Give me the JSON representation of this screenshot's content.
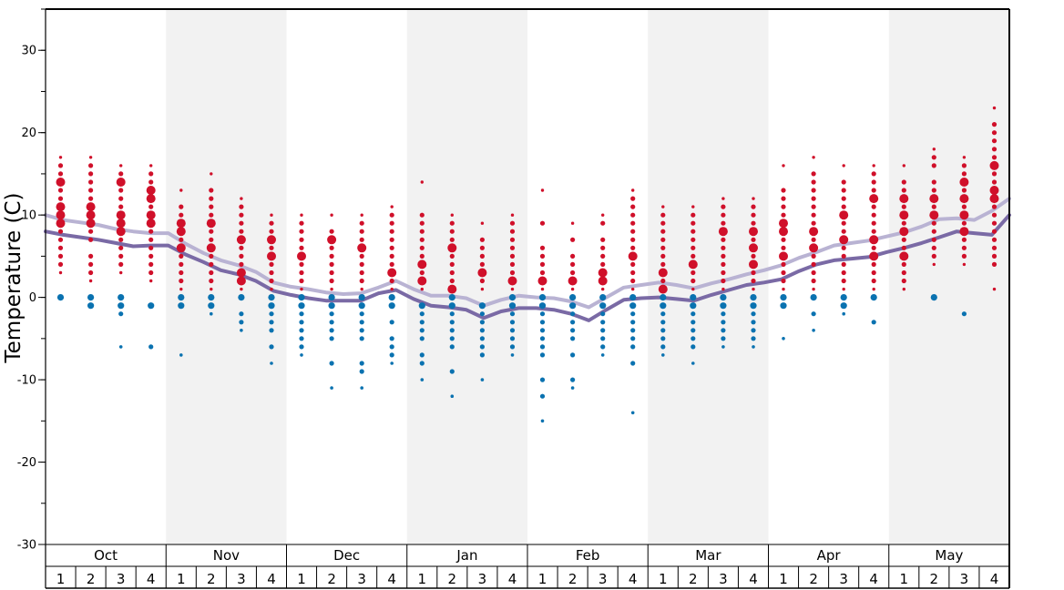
{
  "chart_data": {
    "type": "scatter",
    "ylabel": "Temperature (C)",
    "ylim": [
      -30,
      35
    ],
    "yticks": [
      30,
      20,
      10,
      0,
      -10,
      -20,
      -30
    ],
    "months": [
      "Oct",
      "Nov",
      "Dec",
      "Jan",
      "Feb",
      "Mar",
      "Apr",
      "May"
    ],
    "weeks": [
      "1",
      "2",
      "3",
      "4"
    ],
    "colors": {
      "warm": "#d0102a",
      "cold": "#0a72b0",
      "dark_line": "#7a6aa5",
      "light_line": "#b9b3d3",
      "band": "#f2f2f2",
      "frame": "#000000"
    },
    "series": [
      {
        "values": [
          8.0,
          7.6,
          7.3,
          7.0,
          6.6,
          6.2,
          6.3,
          6.3,
          5.2,
          4.3,
          3.3,
          2.8,
          2.0,
          0.8,
          0.3,
          -0.1,
          -0.4,
          -0.4,
          -0.4,
          0.5,
          0.9,
          -0.2,
          -1.0,
          -1.2,
          -1.5,
          -2.5,
          -1.7,
          -1.3,
          -1.3,
          -1.5,
          -2.0,
          -2.8,
          -1.5,
          -0.3,
          -0.1,
          0.0,
          -0.2,
          -0.4,
          0.3,
          0.9,
          1.5,
          1.8,
          2.2,
          3.2,
          4.0,
          4.5,
          4.7,
          4.9,
          5.5,
          6.0,
          6.6,
          7.3,
          8.0,
          7.8,
          7.6,
          10.0
        ]
      },
      {
        "values": [
          10.0,
          9.4,
          9.1,
          8.8,
          8.3,
          8.0,
          7.8,
          7.8,
          6.5,
          5.4,
          4.5,
          3.9,
          3.1,
          1.8,
          1.3,
          1.0,
          0.6,
          0.4,
          0.5,
          1.2,
          2.0,
          1.0,
          0.2,
          0.2,
          -0.1,
          -1.0,
          -0.3,
          0.2,
          0.0,
          -0.1,
          -0.5,
          -1.2,
          0.0,
          1.2,
          1.5,
          1.8,
          1.5,
          1.1,
          1.7,
          2.2,
          2.8,
          3.3,
          3.9,
          4.8,
          5.5,
          6.3,
          6.6,
          6.9,
          7.4,
          7.9,
          8.6,
          9.5,
          9.6,
          9.4,
          10.5,
          12.0
        ]
      }
    ],
    "warm_points": [
      {
        "week": 1,
        "temps": [
          17,
          16,
          15,
          14,
          13,
          12,
          11,
          10,
          9,
          8,
          7,
          6,
          5,
          4,
          3
        ],
        "big": [
          14,
          11,
          10,
          9
        ]
      },
      {
        "week": 2,
        "temps": [
          17,
          16,
          15,
          14,
          13,
          12,
          11,
          10,
          9,
          8,
          7,
          5,
          4,
          3,
          2
        ],
        "big": [
          11,
          10,
          9
        ]
      },
      {
        "week": 3,
        "temps": [
          16,
          15,
          14,
          13,
          12,
          11,
          10,
          9,
          8,
          7,
          6,
          5,
          4,
          3
        ],
        "big": [
          14,
          10,
          9,
          8
        ]
      },
      {
        "week": 4,
        "temps": [
          16,
          15,
          14,
          13,
          12,
          11,
          10,
          9,
          8,
          7,
          6,
          5,
          4,
          3,
          2
        ],
        "big": [
          13,
          12,
          10,
          9
        ]
      },
      {
        "week": 5,
        "temps": [
          13,
          11,
          10,
          9,
          8,
          7,
          6,
          5,
          4,
          3,
          2,
          1
        ],
        "big": [
          9,
          8,
          6
        ]
      },
      {
        "week": 6,
        "temps": [
          15,
          13,
          12,
          11,
          10,
          9,
          8,
          7,
          6,
          5,
          4,
          3,
          2,
          1
        ],
        "big": [
          9,
          6
        ]
      },
      {
        "week": 7,
        "temps": [
          12,
          11,
          10,
          9,
          8,
          7,
          6,
          5,
          4,
          3,
          2,
          1
        ],
        "big": [
          7,
          3,
          2
        ]
      },
      {
        "week": 8,
        "temps": [
          10,
          9,
          8,
          7,
          6,
          5,
          4,
          3,
          2,
          1
        ],
        "big": [
          7,
          5
        ]
      },
      {
        "week": 9,
        "temps": [
          10,
          9,
          8,
          7,
          6,
          5,
          4,
          3,
          2,
          1
        ],
        "big": [
          5
        ]
      },
      {
        "week": 10,
        "temps": [
          10,
          8,
          7,
          6,
          5,
          4,
          3,
          2,
          1
        ],
        "big": [
          7
        ]
      },
      {
        "week": 11,
        "temps": [
          10,
          9,
          8,
          7,
          6,
          5,
          4,
          3,
          2,
          1
        ],
        "big": [
          6
        ]
      },
      {
        "week": 12,
        "temps": [
          11,
          10,
          9,
          8,
          7,
          6,
          5,
          4,
          3,
          2,
          1
        ],
        "big": [
          3
        ]
      },
      {
        "week": 13,
        "temps": [
          14,
          10,
          9,
          8,
          7,
          6,
          5,
          4,
          3,
          2,
          1
        ],
        "big": [
          4,
          2
        ]
      },
      {
        "week": 14,
        "temps": [
          10,
          9,
          8,
          7,
          6,
          5,
          4,
          3,
          2,
          1
        ],
        "big": [
          6,
          1
        ]
      },
      {
        "week": 15,
        "temps": [
          9,
          7,
          6,
          5,
          4,
          3,
          2,
          1
        ],
        "big": [
          3
        ]
      },
      {
        "week": 16,
        "temps": [
          10,
          9,
          8,
          7,
          6,
          5,
          4,
          3,
          2,
          1
        ],
        "big": [
          2
        ]
      },
      {
        "week": 17,
        "temps": [
          13,
          9,
          6,
          5,
          4,
          3,
          2,
          1
        ],
        "big": [
          2
        ]
      },
      {
        "week": 18,
        "temps": [
          9,
          7,
          5,
          4,
          3,
          2,
          1
        ],
        "big": [
          2
        ]
      },
      {
        "week": 19,
        "temps": [
          10,
          9,
          7,
          6,
          5,
          4,
          3,
          2,
          1
        ],
        "big": [
          3,
          2
        ]
      },
      {
        "week": 20,
        "temps": [
          13,
          12,
          11,
          10,
          9,
          8,
          7,
          6,
          5,
          4,
          3,
          2,
          1
        ],
        "big": [
          5
        ]
      },
      {
        "week": 21,
        "temps": [
          11,
          10,
          9,
          8,
          7,
          6,
          5,
          4,
          3,
          2,
          1
        ],
        "big": [
          3,
          1
        ]
      },
      {
        "week": 22,
        "temps": [
          11,
          10,
          9,
          8,
          7,
          6,
          5,
          4,
          3,
          2,
          1
        ],
        "big": [
          4
        ]
      },
      {
        "week": 23,
        "temps": [
          12,
          11,
          10,
          9,
          8,
          7,
          6,
          5,
          4,
          3,
          2,
          1
        ],
        "big": [
          8
        ]
      },
      {
        "week": 24,
        "temps": [
          12,
          11,
          10,
          9,
          8,
          7,
          6,
          5,
          4,
          3,
          2,
          1
        ],
        "big": [
          8,
          6,
          4
        ]
      },
      {
        "week": 25,
        "temps": [
          16,
          13,
          12,
          11,
          10,
          9,
          8,
          7,
          6,
          5,
          4,
          3,
          2,
          1
        ],
        "big": [
          9,
          8,
          5
        ]
      },
      {
        "week": 26,
        "temps": [
          17,
          15,
          14,
          13,
          12,
          11,
          10,
          9,
          8,
          7,
          6,
          5,
          4,
          3,
          2,
          1
        ],
        "big": [
          8,
          6
        ]
      },
      {
        "week": 27,
        "temps": [
          16,
          14,
          13,
          12,
          11,
          10,
          9,
          8,
          7,
          6,
          5,
          4,
          3,
          2,
          1
        ],
        "big": [
          10,
          7
        ]
      },
      {
        "week": 28,
        "temps": [
          16,
          15,
          14,
          13,
          12,
          11,
          10,
          9,
          8,
          7,
          6,
          5,
          4,
          3,
          2,
          1
        ],
        "big": [
          12,
          7,
          5
        ]
      },
      {
        "week": 29,
        "temps": [
          16,
          14,
          13,
          12,
          11,
          10,
          9,
          8,
          7,
          6,
          5,
          4,
          3,
          2,
          1
        ],
        "big": [
          12,
          10,
          8,
          5
        ]
      },
      {
        "week": 30,
        "temps": [
          18,
          17,
          16,
          14,
          13,
          12,
          11,
          10,
          9,
          8,
          7,
          6,
          5,
          4
        ],
        "big": [
          12,
          10
        ]
      },
      {
        "week": 31,
        "temps": [
          17,
          16,
          15,
          14,
          13,
          12,
          11,
          10,
          9,
          8,
          7,
          6,
          5,
          4
        ],
        "big": [
          14,
          12,
          10,
          8
        ]
      },
      {
        "week": 32,
        "temps": [
          23,
          21,
          20,
          19,
          18,
          17,
          16,
          15,
          14,
          13,
          12,
          11,
          10,
          9,
          8,
          7,
          6,
          5,
          4,
          1
        ],
        "big": [
          16,
          13,
          12
        ]
      }
    ],
    "cold_points": [
      {
        "week": 1,
        "temps": [
          0
        ]
      },
      {
        "week": 2,
        "temps": [
          0,
          -1
        ]
      },
      {
        "week": 3,
        "temps": [
          0,
          -1,
          -2,
          -6
        ]
      },
      {
        "week": 4,
        "temps": [
          -1,
          -6
        ]
      },
      {
        "week": 5,
        "temps": [
          0,
          -1,
          -7
        ]
      },
      {
        "week": 6,
        "temps": [
          0,
          -1,
          -2
        ]
      },
      {
        "week": 7,
        "temps": [
          0,
          -2,
          -3,
          -4
        ]
      },
      {
        "week": 8,
        "temps": [
          0,
          -1,
          -2,
          -3,
          -4,
          -6,
          -8
        ]
      },
      {
        "week": 9,
        "temps": [
          0,
          -1,
          -2,
          -3,
          -4,
          -5,
          -6,
          -7
        ]
      },
      {
        "week": 10,
        "temps": [
          0,
          -1,
          -2,
          -3,
          -4,
          -5,
          -8,
          -11
        ]
      },
      {
        "week": 11,
        "temps": [
          0,
          -1,
          -2,
          -3,
          -4,
          -5,
          -8,
          -9,
          -11
        ]
      },
      {
        "week": 12,
        "temps": [
          0,
          -1,
          -3,
          -5,
          -6,
          -7,
          -8
        ]
      },
      {
        "week": 13,
        "temps": [
          -1,
          -2,
          -3,
          -4,
          -5,
          -7,
          -8,
          -10
        ]
      },
      {
        "week": 14,
        "temps": [
          0,
          -1,
          -2,
          -3,
          -4,
          -5,
          -6,
          -9,
          -12
        ]
      },
      {
        "week": 15,
        "temps": [
          -1,
          -2,
          -3,
          -4,
          -5,
          -6,
          -7,
          -10
        ]
      },
      {
        "week": 16,
        "temps": [
          0,
          -1,
          -2,
          -3,
          -4,
          -5,
          -6,
          -7
        ]
      },
      {
        "week": 17,
        "temps": [
          0,
          -1,
          -2,
          -3,
          -4,
          -5,
          -6,
          -7,
          -10,
          -12,
          -15
        ]
      },
      {
        "week": 18,
        "temps": [
          0,
          -1,
          -2,
          -3,
          -4,
          -5,
          -7,
          -10,
          -11
        ]
      },
      {
        "week": 19,
        "temps": [
          0,
          -1,
          -2,
          -3,
          -4,
          -5,
          -6,
          -7
        ]
      },
      {
        "week": 20,
        "temps": [
          0,
          -1,
          -2,
          -3,
          -4,
          -5,
          -6,
          -8,
          -14
        ]
      },
      {
        "week": 21,
        "temps": [
          0,
          -1,
          -2,
          -3,
          -4,
          -5,
          -6,
          -7
        ]
      },
      {
        "week": 22,
        "temps": [
          0,
          -1,
          -2,
          -3,
          -4,
          -5,
          -6,
          -8
        ]
      },
      {
        "week": 23,
        "temps": [
          0,
          -1,
          -2,
          -3,
          -4,
          -5,
          -6
        ]
      },
      {
        "week": 24,
        "temps": [
          0,
          -1,
          -2,
          -3,
          -4,
          -5,
          -6
        ]
      },
      {
        "week": 25,
        "temps": [
          0,
          -1,
          -5
        ]
      },
      {
        "week": 26,
        "temps": [
          0,
          -2,
          -4
        ]
      },
      {
        "week": 27,
        "temps": [
          0,
          -1,
          -2
        ]
      },
      {
        "week": 28,
        "temps": [
          0,
          -3
        ]
      },
      {
        "week": 30,
        "temps": [
          0
        ]
      },
      {
        "week": 31,
        "temps": [
          -2
        ]
      }
    ]
  }
}
